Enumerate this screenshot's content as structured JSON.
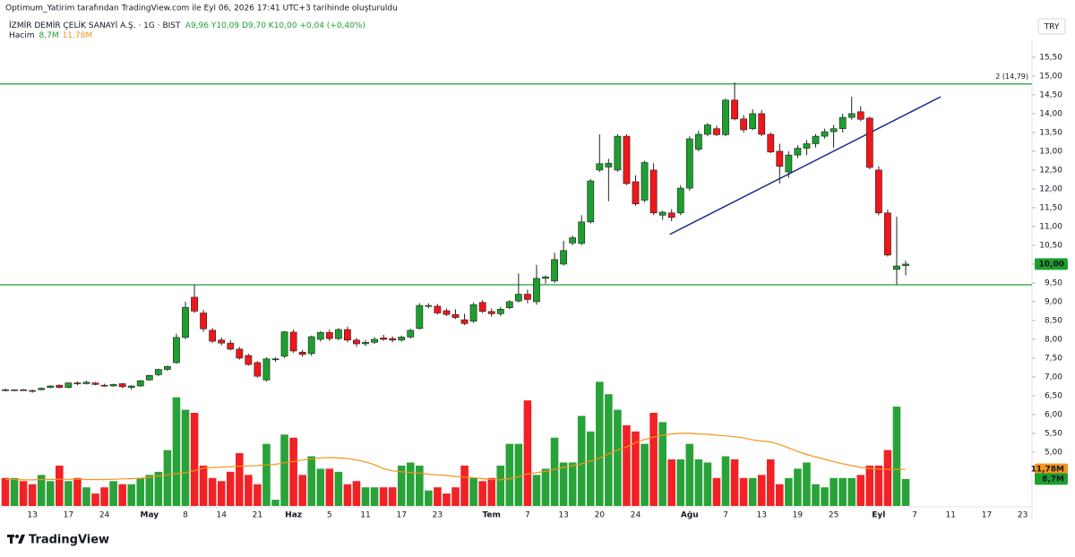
{
  "header": {
    "credit": "Optimum_Yatirim tarafından TradingView.com ile Eyl 06, 2026 17:41 UTC+3 tarihinde oluşturuldu",
    "symbol": "İZMİR DEMİR ÇELİK SANAYİ A.Ş. · 1G · BIST",
    "quote": "A9,96  Y10,09  D9,70  K10,00  +0,04 (+0,40%)",
    "volume_title": "Hacim",
    "volume_value": "8,7M",
    "volume_ma": "11,78M",
    "currency": "TRY",
    "brand": "TradingView"
  },
  "chart_data": {
    "type": "candlestick",
    "categories": [
      null,
      null,
      null,
      "13",
      null,
      null,
      null,
      "17",
      null,
      null,
      null,
      "24",
      null,
      null,
      null,
      null,
      "May",
      null,
      null,
      null,
      "8",
      null,
      null,
      null,
      "14",
      null,
      null,
      null,
      "21",
      null,
      null,
      null,
      "Haz",
      null,
      null,
      null,
      "5",
      null,
      null,
      null,
      "11",
      null,
      null,
      null,
      "17",
      null,
      null,
      null,
      "23",
      null,
      null,
      null,
      null,
      null,
      "Tem",
      null,
      null,
      null,
      "7",
      null,
      null,
      null,
      "13",
      null,
      null,
      null,
      "20",
      null,
      null,
      null,
      "24",
      null,
      null,
      null,
      null,
      null,
      "Ağu",
      null,
      null,
      null,
      "7",
      null,
      null,
      null,
      "13",
      null,
      null,
      null,
      "19",
      null,
      null,
      null,
      "25",
      null,
      null,
      null,
      null,
      "Eyl",
      null,
      null,
      null,
      "7",
      null,
      null,
      null,
      "11",
      null,
      null,
      null,
      "17",
      null,
      null,
      null,
      "23"
    ],
    "open": [
      6.66,
      6.64,
      6.66,
      6.64,
      6.66,
      6.72,
      6.78,
      6.72,
      6.84,
      6.82,
      6.84,
      6.78,
      6.76,
      6.82,
      6.72,
      6.76,
      6.92,
      7.06,
      7.2,
      7.38,
      8.05,
      9.12,
      8.7,
      8.24,
      7.98,
      7.9,
      7.74,
      7.57,
      7.38,
      6.92,
      7.46,
      7.55,
      8.19,
      7.66,
      7.62,
      8.0,
      8.18,
      8.02,
      8.26,
      7.98,
      7.88,
      7.92,
      8.04,
      8.02,
      7.98,
      8.06,
      8.29,
      8.88,
      8.88,
      8.76,
      8.66,
      8.52,
      8.48,
      8.98,
      8.74,
      8.68,
      8.84,
      9.02,
      9.2,
      9.0,
      9.62,
      9.55,
      10.0,
      10.56,
      10.55,
      11.12,
      12.5,
      12.58,
      12.5,
      13.4,
      12.19,
      11.7,
      12.5,
      11.3,
      11.36,
      11.36,
      12.02,
      13.05,
      13.45,
      13.6,
      13.44,
      14.36,
      13.86,
      13.6,
      14.0,
      13.45,
      13.0,
      12.45,
      12.9,
      13.08,
      13.2,
      13.4,
      13.52,
      13.6,
      13.9,
      14.05,
      13.88,
      12.5,
      11.36,
      9.86,
      9.96,
      null,
      null,
      null,
      null,
      null,
      null,
      null,
      null,
      null,
      null,
      null,
      null,
      null
    ],
    "high": [
      6.69,
      6.67,
      6.68,
      6.66,
      6.72,
      6.78,
      6.8,
      6.86,
      6.88,
      6.9,
      6.86,
      6.82,
      6.82,
      6.84,
      6.78,
      6.92,
      7.06,
      7.22,
      7.3,
      8.15,
      9.0,
      9.45,
      8.78,
      8.3,
      8.05,
      7.98,
      7.8,
      7.62,
      7.42,
      7.52,
      7.52,
      8.22,
      8.26,
      7.72,
      8.1,
      8.22,
      8.26,
      8.3,
      8.34,
      8.04,
      7.98,
      8.06,
      8.12,
      8.08,
      8.1,
      8.28,
      8.96,
      8.96,
      8.94,
      8.82,
      8.8,
      8.68,
      8.98,
      9.04,
      8.82,
      8.86,
      9.04,
      9.75,
      9.32,
      9.98,
      9.7,
      10.3,
      10.62,
      10.76,
      11.3,
      12.26,
      13.45,
      12.8,
      13.45,
      13.45,
      12.36,
      12.75,
      12.68,
      11.42,
      11.46,
      12.1,
      13.4,
      13.55,
      13.75,
      13.68,
      14.4,
      14.83,
      13.96,
      14.12,
      14.1,
      13.5,
      13.2,
      13.0,
      13.16,
      13.3,
      13.46,
      13.6,
      13.7,
      14.0,
      14.45,
      14.2,
      13.92,
      12.6,
      11.45,
      11.26,
      10.09,
      null,
      null,
      null,
      null,
      null,
      null,
      null,
      null,
      null,
      null,
      null,
      null,
      null
    ],
    "low": [
      6.62,
      6.62,
      6.64,
      6.58,
      6.64,
      6.7,
      6.7,
      6.7,
      6.78,
      6.8,
      6.78,
      6.74,
      6.74,
      6.7,
      6.66,
      6.74,
      6.9,
      7.02,
      7.16,
      7.35,
      8.0,
      8.7,
      8.2,
      7.9,
      7.84,
      7.7,
      7.46,
      7.3,
      6.98,
      6.88,
      7.4,
      7.5,
      7.64,
      7.54,
      7.56,
      7.94,
      7.96,
      7.98,
      7.92,
      7.8,
      7.82,
      7.88,
      7.96,
      7.92,
      7.94,
      8.02,
      8.26,
      8.82,
      8.66,
      8.62,
      8.54,
      8.38,
      8.44,
      8.7,
      8.6,
      8.62,
      8.8,
      8.98,
      8.96,
      8.92,
      9.48,
      9.5,
      9.96,
      10.5,
      10.5,
      11.08,
      12.45,
      11.67,
      12.45,
      12.1,
      11.55,
      11.64,
      11.3,
      11.18,
      11.14,
      11.3,
      11.95,
      13.0,
      13.4,
      13.4,
      13.4,
      13.82,
      13.5,
      13.56,
      13.4,
      12.95,
      12.14,
      12.3,
      12.82,
      12.9,
      13.1,
      13.34,
      13.1,
      13.5,
      13.84,
      13.8,
      12.52,
      11.3,
      10.2,
      9.45,
      9.7,
      null,
      null,
      null,
      null,
      null,
      null,
      null,
      null,
      null,
      null,
      null,
      null,
      null
    ],
    "close": [
      6.64,
      6.66,
      6.65,
      6.63,
      6.7,
      6.76,
      6.72,
      6.84,
      6.82,
      6.86,
      6.8,
      6.76,
      6.8,
      6.74,
      6.76,
      6.9,
      7.04,
      7.2,
      7.28,
      8.05,
      8.85,
      8.75,
      8.28,
      7.95,
      7.9,
      7.74,
      7.5,
      7.33,
      7.02,
      7.48,
      7.48,
      8.2,
      7.69,
      7.6,
      8.07,
      8.18,
      8.02,
      8.26,
      7.98,
      7.88,
      7.92,
      8.0,
      8.0,
      7.98,
      8.06,
      8.24,
      8.9,
      8.9,
      8.7,
      8.66,
      8.58,
      8.42,
      8.92,
      8.74,
      8.68,
      8.8,
      9.0,
      9.2,
      9.06,
      9.62,
      9.66,
      10.12,
      10.36,
      10.7,
      11.12,
      12.21,
      12.67,
      12.68,
      13.4,
      12.14,
      11.6,
      12.7,
      11.36,
      11.38,
      11.24,
      12.02,
      13.33,
      13.45,
      13.7,
      13.44,
      14.36,
      13.86,
      13.57,
      14.0,
      13.45,
      12.98,
      12.6,
      12.9,
      13.08,
      13.2,
      13.4,
      13.52,
      13.6,
      13.9,
      14.0,
      13.85,
      12.57,
      11.36,
      10.24,
      9.95,
      10.0,
      null,
      null,
      null,
      null,
      null,
      null,
      null,
      null,
      null,
      null,
      null,
      null,
      null
    ],
    "volume": {
      "values": [
        9,
        9,
        8,
        7,
        10,
        8,
        13,
        8,
        9,
        6,
        4,
        6,
        8,
        7,
        7,
        9,
        10,
        11,
        18,
        35,
        31,
        30,
        13,
        9,
        8,
        11,
        17,
        10,
        7,
        20,
        2,
        23,
        22,
        10,
        16,
        12,
        12,
        11,
        7,
        8,
        6,
        6,
        6,
        6,
        13,
        14,
        13,
        5,
        6,
        4,
        6,
        13,
        9,
        8,
        9,
        13,
        20,
        20,
        34,
        10,
        12,
        22,
        14,
        14,
        29,
        24,
        40,
        36,
        31,
        26,
        24,
        20,
        30,
        27,
        15,
        15,
        20,
        15,
        14,
        9,
        16,
        15,
        9,
        9,
        10,
        15,
        7,
        9,
        12,
        14,
        7,
        6,
        9,
        9,
        9,
        10,
        13,
        13,
        18,
        32,
        8.7,
        null,
        null,
        null,
        null,
        null,
        null,
        null,
        null,
        null,
        null,
        null,
        null,
        null
      ],
      "axis": "y2"
    },
    "ma": {
      "color": "#f7931a",
      "axis": "y2",
      "values": [
        8.5,
        8.5,
        8.4,
        8.4,
        8.5,
        8.5,
        8.6,
        8.6,
        8.6,
        8.5,
        8.5,
        8.5,
        8.6,
        8.7,
        8.8,
        8.9,
        9.2,
        9.6,
        10.0,
        10.4,
        10.7,
        11.4,
        12.2,
        12.4,
        12.5,
        12.6,
        12.8,
        12.9,
        13.0,
        13.2,
        13.4,
        13.9,
        14.3,
        14.8,
        15.2,
        15.5,
        15.6,
        15.5,
        15.3,
        14.8,
        14.2,
        13.3,
        12.0,
        11.3,
        11.0,
        10.8,
        10.6,
        10.2,
        10.0,
        9.8,
        9.5,
        9.3,
        9.1,
        8.8,
        8.5,
        8.4,
        8.8,
        9.4,
        10.3,
        10.7,
        11.2,
        11.8,
        12.4,
        13.0,
        13.6,
        14.5,
        15.4,
        16.8,
        18.0,
        19.0,
        20.4,
        21.4,
        22.2,
        22.8,
        23.2,
        23.4,
        23.4,
        23.2,
        23.1,
        22.8,
        22.6,
        22.3,
        21.9,
        21.3,
        20.9,
        20.6,
        19.8,
        18.7,
        17.6,
        16.6,
        15.8,
        15.0,
        14.3,
        13.6,
        13.0,
        12.4,
        12.1,
        11.9,
        11.8,
        11.8,
        11.78,
        null,
        null,
        null,
        null,
        null,
        null,
        null,
        null,
        null,
        null,
        null,
        null,
        null
      ]
    },
    "up_color": "#1e9e2e",
    "down_color": "#f0161a",
    "ylim": [
      3.57,
      15.95
    ],
    "yticks": [
      {
        "value": 4.5,
        "label": "4,50"
      },
      {
        "value": 5,
        "label": "5,00"
      },
      {
        "value": 5.5,
        "label": "5,50"
      },
      {
        "value": 6,
        "label": "6,00"
      },
      {
        "value": 6.5,
        "label": "6,50"
      },
      {
        "value": 7,
        "label": "7,00"
      },
      {
        "value": 7.5,
        "label": "7,50"
      },
      {
        "value": 8,
        "label": "8,00"
      },
      {
        "value": 8.5,
        "label": "8,50"
      },
      {
        "value": 9,
        "label": "9,00"
      },
      {
        "value": 9.5,
        "label": "9,50"
      },
      {
        "value": 10,
        "label": "10,00"
      },
      {
        "value": 10.5,
        "label": "10,50"
      },
      {
        "value": 11,
        "label": "11,00"
      },
      {
        "value": 11.5,
        "label": "11,50"
      },
      {
        "value": 12,
        "label": "12,00"
      },
      {
        "value": 12.5,
        "label": "12,50"
      },
      {
        "value": 13,
        "label": "13,00"
      },
      {
        "value": 13.5,
        "label": "13,50"
      },
      {
        "value": 14,
        "label": "14,00"
      },
      {
        "value": 14.5,
        "label": "14,50"
      },
      {
        "value": 15,
        "label": "15,00"
      },
      {
        "value": 15.5,
        "label": "15,50"
      }
    ],
    "y2lim": [
      0,
      150
    ],
    "grid": false,
    "hlines": [
      {
        "value": 14.79,
        "label": "2 (14,79)",
        "color": "#1e9e2e"
      },
      {
        "value": 9.45,
        "color": "#1e9e2e"
      }
    ],
    "trend_line": {
      "x": [
        73.8,
        103.9
      ],
      "y": [
        10.79,
        14.45
      ],
      "color": "#1a2a8a"
    },
    "badges": [
      {
        "value": 10.0,
        "label": "10,00",
        "color": "#1e9e2e"
      },
      {
        "value": 11.78,
        "label": "11,78M",
        "color": "#f7931a",
        "axis": "y2"
      },
      {
        "value": 8.7,
        "label": "8,7M",
        "color": "#1e9e2e",
        "axis": "y2"
      }
    ]
  }
}
